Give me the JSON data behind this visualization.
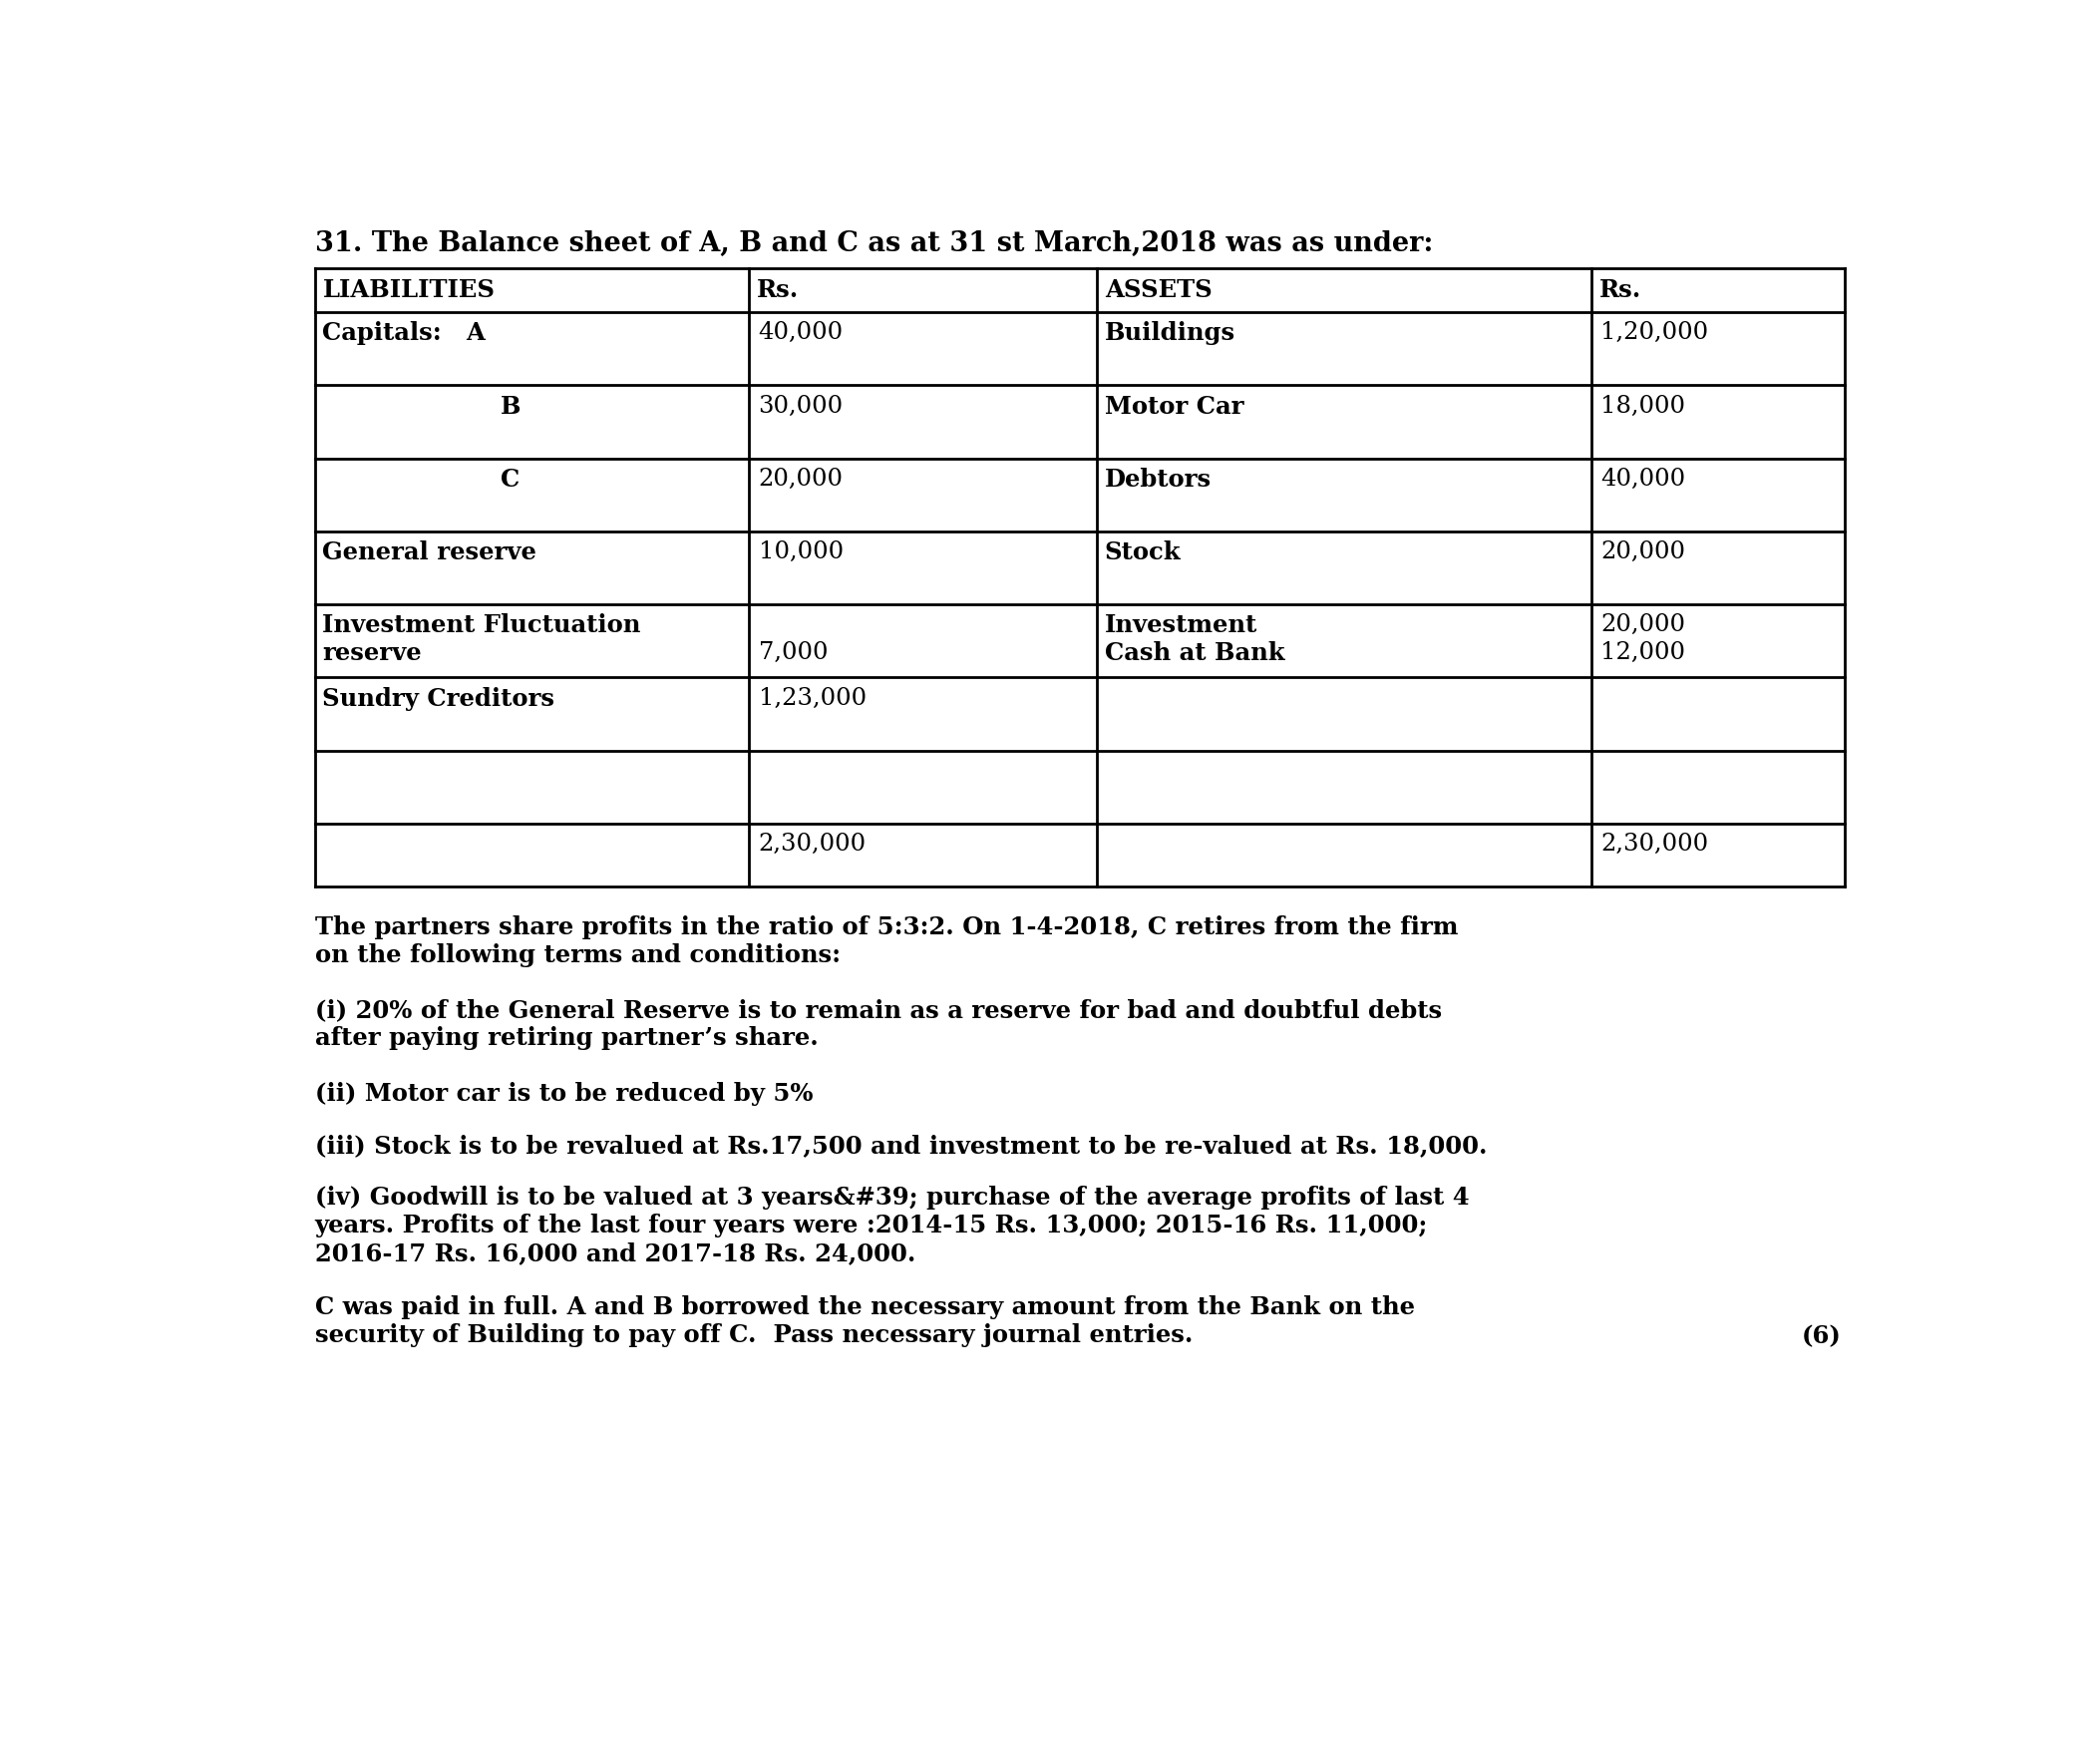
{
  "title": "31. The Balance sheet of A, B and C as at 31 st March,2018 was as under:",
  "col_headers": [
    "LIABILITIES",
    "Rs.",
    "ASSETS",
    "Rs."
  ],
  "liab_labels": [
    [
      "Capitals:",
      "A"
    ],
    [
      "",
      "B"
    ],
    [
      "",
      "C"
    ],
    [
      "General reserve",
      ""
    ],
    [
      "Investment Fluctuation",
      ""
    ],
    [
      "reserve",
      ""
    ],
    [
      "Sundry Creditors",
      ""
    ],
    [
      "",
      ""
    ]
  ],
  "liab_values": [
    "40,000",
    "30,000",
    "20,000",
    "10,000",
    "",
    "7,000",
    "1,23,000",
    ""
  ],
  "liab_total": "2,30,000",
  "asset_labels": [
    "Buildings",
    "Motor Car",
    "Debtors",
    "Stock",
    "Investment",
    "Cash at Bank",
    "",
    ""
  ],
  "asset_values": [
    "1,20,000",
    "18,000",
    "40,000",
    "20,000",
    "20,000",
    "12,000",
    "",
    ""
  ],
  "asset_total": "2,30,000",
  "para1": "The partners share profits in the ratio of 5:3:2. On 1-4-2018, C retires from the firm\non the following terms and conditions:",
  "para2": "(i) 20% of the General Reserve is to remain as a reserve for bad and doubtful debts\nafter paying retiring partner’s share.",
  "para3": "(ii) Motor car is to be reduced by 5%",
  "para4": "(iii) Stock is to be revalued at Rs.17,500 and investment to be re-valued at Rs. 18,000.",
  "para5": "(iv) Goodwill is to be valued at 3 years&#39; purchase of the average profits of last 4\nyears. Profits of the last four years were :2014-15 Rs. 13,000; 2015-16 Rs. 11,000;\n2016-17 Rs. 16,000 and 2017-18 Rs. 24,000.",
  "para6": "C was paid in full. A and B borrowed the necessary amount from the Bank on the\nsecurity of Building to pay off C.  Pass necessary journal entries.",
  "para6_mark": "(6)",
  "bg_color": "#ffffff",
  "text_color": "#000000",
  "fs": 17.5,
  "title_fs": 19.5
}
